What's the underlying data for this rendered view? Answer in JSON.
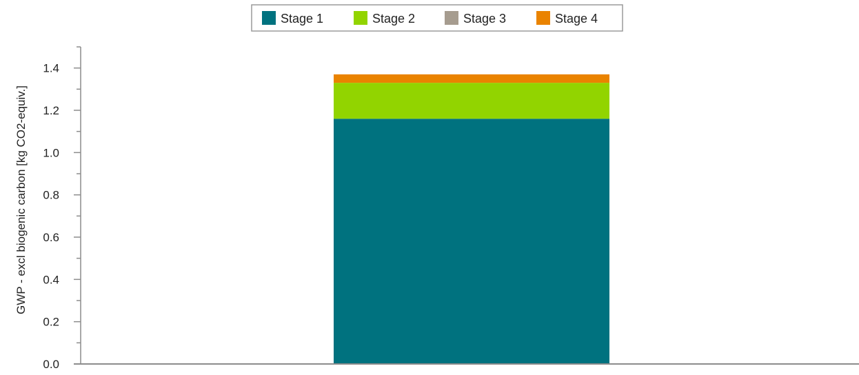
{
  "chart_data": {
    "type": "bar",
    "stacked": true,
    "categories": [
      ""
    ],
    "series": [
      {
        "name": "Stage 1",
        "color": "#00727f",
        "values": [
          1.16
        ]
      },
      {
        "name": "Stage 2",
        "color": "#92d400",
        "values": [
          0.17
        ]
      },
      {
        "name": "Stage 3",
        "color": "#a69c8f",
        "values": [
          0.0
        ]
      },
      {
        "name": "Stage 4",
        "color": "#ea8300",
        "values": [
          0.04
        ]
      }
    ],
    "title": "",
    "xlabel": "",
    "ylabel": "GWP - excl biogenic carbon [kg CO2-equiv.]",
    "ylim": [
      0,
      1.5
    ],
    "yticks": [
      "0.0",
      "0.2",
      "0.4",
      "0.6",
      "0.8",
      "1.0",
      "1.2",
      "1.4"
    ],
    "grid": false,
    "legend_position": "top-center"
  }
}
